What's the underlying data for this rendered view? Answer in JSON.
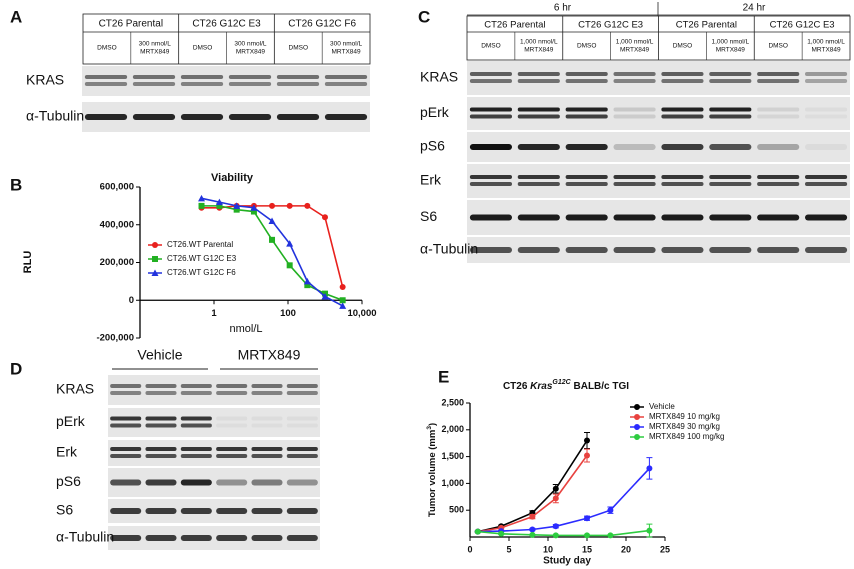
{
  "panel_a": {
    "letter": "A",
    "groups": [
      "CT26 Parental",
      "CT26 G12C E3",
      "CT26 G12C F6"
    ],
    "lanes": [
      [
        "DMSO"
      ],
      [
        "300 nmol/L",
        "MRTX849"
      ],
      [
        "DMSO"
      ],
      [
        "300 nmol/L",
        "MRTX849"
      ],
      [
        "DMSO"
      ],
      [
        "300 nmol/L",
        "MRTX849"
      ]
    ],
    "rows": [
      "KRAS",
      "α-Tubulin"
    ]
  },
  "panel_c": {
    "letter": "C",
    "times": [
      "6 hr",
      "24 hr"
    ],
    "groups": [
      "CT26 Parental",
      "CT26 G12C E3",
      "CT26 Parental",
      "CT26 G12C E3"
    ],
    "lanes": [
      [
        "DMSO"
      ],
      [
        "1,000 nmol/L",
        "MRTX849"
      ],
      [
        "DMSO"
      ],
      [
        "1,000 nmol/L",
        "MRTX849"
      ],
      [
        "DMSO"
      ],
      [
        "1,000 nmol/L",
        "MRTX849"
      ],
      [
        "DMSO"
      ],
      [
        "1,000 nmol/L",
        "MRTX849"
      ]
    ],
    "rows": [
      "KRAS",
      "pErk",
      "pS6",
      "Erk",
      "S6",
      "α-Tubulin"
    ]
  },
  "panel_d": {
    "letter": "D",
    "groups": [
      "Vehicle",
      "MRTX849"
    ],
    "rows": [
      "KRAS",
      "pErk",
      "Erk",
      "pS6",
      "S6",
      "α-Tubulin"
    ]
  },
  "chart_data": [
    {
      "type": "line",
      "panel_label": "B",
      "title": "Viability",
      "ylabel": "RLU",
      "xlabel": "nmol/L",
      "xscale": "log",
      "xlim": [
        0.01,
        10000
      ],
      "xticks": [
        1,
        100,
        {
          "value": 10000,
          "label": "10,000"
        }
      ],
      "ylim": [
        -200000,
        600000
      ],
      "yticks": [
        {
          "value": 600000,
          "label": "600,000"
        },
        {
          "value": 400000,
          "label": "400,000"
        },
        {
          "value": 200000,
          "label": "200,000"
        },
        0,
        {
          "value": -200000,
          "label": "-200,000"
        }
      ],
      "x": [
        0.46,
        1.4,
        4.1,
        12,
        37,
        111,
        333,
        1000,
        3000
      ],
      "series": [
        {
          "name": "CT26.WT Parental",
          "color": "#e8211d",
          "values": [
            490000,
            490000,
            500000,
            500000,
            500000,
            500000,
            500000,
            440000,
            70000
          ]
        },
        {
          "name": "CT26.WT G12C E3",
          "color": "#22b022",
          "values": [
            500000,
            500000,
            480000,
            470000,
            320000,
            185000,
            80000,
            35000,
            0
          ]
        },
        {
          "name": "CT26.WT G12C F6",
          "color": "#2233dd",
          "values": [
            540000,
            520000,
            500000,
            490000,
            420000,
            300000,
            100000,
            20000,
            -30000
          ]
        }
      ]
    },
    {
      "type": "line",
      "panel_label": "E",
      "title_parts": [
        "CT26 ",
        "Kras",
        "G12C",
        " BALB/c TGI"
      ],
      "ylabel_parts": [
        "Tumor volume (mm",
        "3",
        ")"
      ],
      "xlabel": "Study day",
      "xlim": [
        0,
        25
      ],
      "xticks": [
        0,
        5,
        10,
        15,
        20,
        25
      ],
      "ylim": [
        0,
        2500
      ],
      "yticks": [
        500,
        {
          "value": 1000,
          "label": "1,000"
        },
        {
          "value": 1500,
          "label": "1,500"
        },
        {
          "value": 2000,
          "label": "2,000"
        },
        {
          "value": 2500,
          "label": "2,500"
        }
      ],
      "series": [
        {
          "name": "Vehicle",
          "color": "#000000",
          "x": [
            1,
            4,
            8,
            11,
            15
          ],
          "values": [
            100,
            200,
            450,
            900,
            1800
          ],
          "errors": [
            10,
            20,
            40,
            80,
            150
          ]
        },
        {
          "name": "MRTX849 10 mg/kg",
          "color": "#e8423f",
          "x": [
            1,
            4,
            8,
            11,
            15
          ],
          "values": [
            100,
            170,
            380,
            720,
            1520
          ],
          "errors": [
            10,
            20,
            40,
            80,
            120
          ]
        },
        {
          "name": "MRTX849 30 mg/kg",
          "color": "#2b2bff",
          "x": [
            1,
            4,
            8,
            11,
            15,
            18,
            23
          ],
          "values": [
            100,
            110,
            140,
            200,
            350,
            500,
            1280
          ],
          "errors": [
            10,
            10,
            20,
            30,
            40,
            60,
            200
          ]
        },
        {
          "name": "MRTX849 100 mg/kg",
          "color": "#2ecc40",
          "x": [
            1,
            4,
            8,
            11,
            15,
            18,
            23
          ],
          "values": [
            100,
            60,
            40,
            30,
            30,
            30,
            120
          ],
          "errors": [
            10,
            10,
            10,
            10,
            10,
            10,
            120
          ]
        }
      ]
    }
  ]
}
